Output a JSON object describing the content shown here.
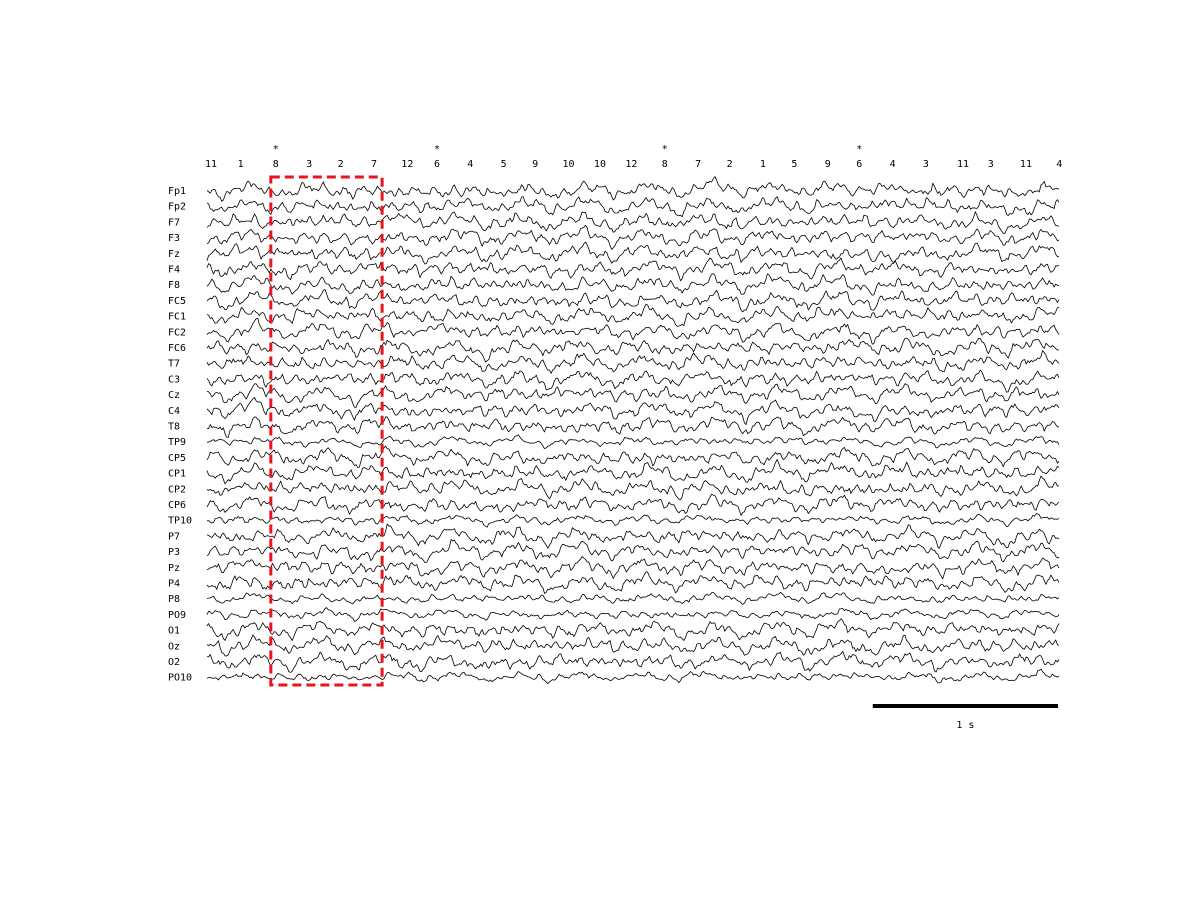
{
  "chart_data": {
    "type": "line",
    "description_kind": "multichannel-eeg-trace",
    "channels": [
      "Fp1",
      "Fp2",
      "F7",
      "F3",
      "Fz",
      "F4",
      "F8",
      "FC5",
      "FC1",
      "FC2",
      "FC6",
      "T7",
      "C3",
      "Cz",
      "C4",
      "T8",
      "TP9",
      "CP5",
      "CP1",
      "CP2",
      "CP6",
      "TP10",
      "P7",
      "P3",
      "Pz",
      "P4",
      "P8",
      "PO9",
      "O1",
      "Oz",
      "O2",
      "PO10"
    ],
    "time_axis": {
      "unit": "s",
      "range": [
        0,
        4.6
      ]
    },
    "stimulus_sequence": [
      {
        "label": "11",
        "t": 0.0,
        "marked": false
      },
      {
        "label": "1",
        "t": 0.16,
        "marked": false
      },
      {
        "label": "8",
        "t": 0.35,
        "marked": true
      },
      {
        "label": "3",
        "t": 0.53,
        "marked": false
      },
      {
        "label": "2",
        "t": 0.7,
        "marked": false
      },
      {
        "label": "7",
        "t": 0.88,
        "marked": false
      },
      {
        "label": "12",
        "t": 1.06,
        "marked": false
      },
      {
        "label": "6",
        "t": 1.22,
        "marked": true
      },
      {
        "label": "4",
        "t": 1.4,
        "marked": false
      },
      {
        "label": "5",
        "t": 1.58,
        "marked": false
      },
      {
        "label": "9",
        "t": 1.75,
        "marked": false
      },
      {
        "label": "10",
        "t": 1.93,
        "marked": false
      },
      {
        "label": "10",
        "t": 2.1,
        "marked": false
      },
      {
        "label": "12",
        "t": 2.27,
        "marked": false
      },
      {
        "label": "8",
        "t": 2.45,
        "marked": true
      },
      {
        "label": "7",
        "t": 2.63,
        "marked": false
      },
      {
        "label": "2",
        "t": 2.8,
        "marked": false
      },
      {
        "label": "1",
        "t": 2.98,
        "marked": false
      },
      {
        "label": "5",
        "t": 3.15,
        "marked": false
      },
      {
        "label": "9",
        "t": 3.33,
        "marked": false
      },
      {
        "label": "6",
        "t": 3.5,
        "marked": true
      },
      {
        "label": "4",
        "t": 3.68,
        "marked": false
      },
      {
        "label": "3",
        "t": 3.86,
        "marked": false
      },
      {
        "label": "11",
        "t": 4.06,
        "marked": false
      },
      {
        "label": "3",
        "t": 4.21,
        "marked": false
      },
      {
        "label": "11",
        "t": 4.4,
        "marked": false
      },
      {
        "label": "4",
        "t": 4.58,
        "marked": false
      }
    ],
    "marker_symbol": "*",
    "highlight_window": {
      "t_start": 0.35,
      "t_end": 0.94,
      "color": "#e8161b",
      "style": "dashed"
    },
    "scale_bar": {
      "duration": 1,
      "label": "1 s"
    },
    "colors": {
      "trace": "#000000",
      "highlight": "#e8161b"
    }
  }
}
